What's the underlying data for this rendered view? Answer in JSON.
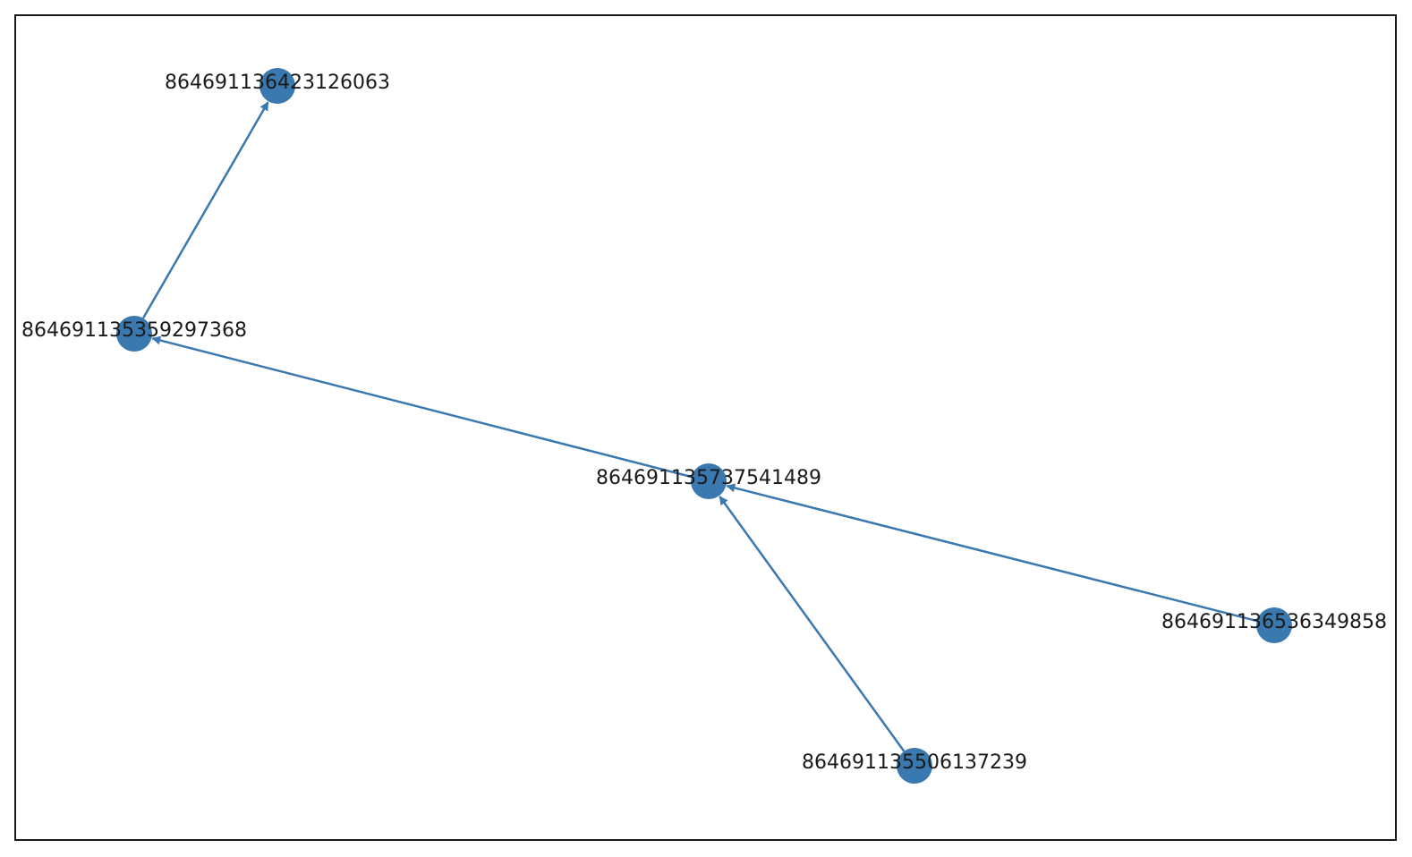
{
  "diagram": {
    "type": "directed-graph",
    "colors": {
      "node_fill": "#3a78b0",
      "edge_stroke": "#3a78b0",
      "frame_stroke": "#1a1a1a",
      "background": "#ffffff",
      "label_text": "#1a1a1a"
    },
    "nodes": [
      {
        "id": "n1",
        "label": "864691136423126063"
      },
      {
        "id": "n2",
        "label": "864691135359297368"
      },
      {
        "id": "n3",
        "label": "864691135737541489"
      },
      {
        "id": "n4",
        "label": "864691136536349858"
      },
      {
        "id": "n5",
        "label": "864691135506137239"
      }
    ],
    "edges": [
      {
        "source": "n2",
        "target": "n1"
      },
      {
        "source": "n3",
        "target": "n2"
      },
      {
        "source": "n4",
        "target": "n3"
      },
      {
        "source": "n5",
        "target": "n3"
      }
    ]
  }
}
